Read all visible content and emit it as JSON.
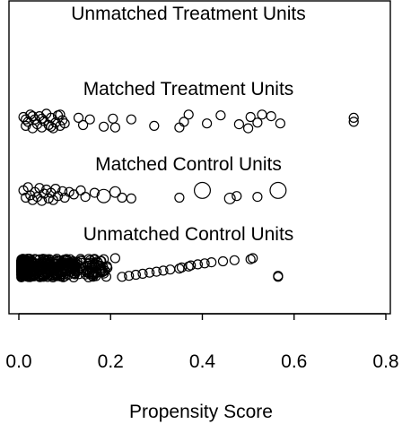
{
  "chart_data": {
    "type": "scatter",
    "title": "",
    "xlabel": "Propensity Score",
    "ylabel": "",
    "xlim": [
      -0.03,
      0.83
    ],
    "xticks": [
      "0.0",
      "0.2",
      "0.4",
      "0.6",
      "0.8"
    ],
    "xtick_values": [
      0.0,
      0.2,
      0.4,
      0.6,
      0.8
    ],
    "grid": false,
    "groups": [
      {
        "name": "Unmatched Treatment Units",
        "points": []
      },
      {
        "name": "Matched Treatment Units",
        "points": [
          {
            "x": 0.01,
            "j": -0.5,
            "w": 1
          },
          {
            "x": 0.015,
            "j": 0.6,
            "w": 1
          },
          {
            "x": 0.02,
            "j": 0.1,
            "w": 1
          },
          {
            "x": 0.025,
            "j": -0.8,
            "w": 1
          },
          {
            "x": 0.03,
            "j": 0.9,
            "w": 1
          },
          {
            "x": 0.035,
            "j": -0.2,
            "w": 1
          },
          {
            "x": 0.04,
            "j": 0.4,
            "w": 1
          },
          {
            "x": 0.045,
            "j": -0.6,
            "w": 1
          },
          {
            "x": 0.05,
            "j": 0.8,
            "w": 1
          },
          {
            "x": 0.055,
            "j": 0.0,
            "w": 1
          },
          {
            "x": 0.06,
            "j": -0.9,
            "w": 1
          },
          {
            "x": 0.065,
            "j": 0.5,
            "w": 1
          },
          {
            "x": 0.07,
            "j": -0.4,
            "w": 1
          },
          {
            "x": 0.075,
            "j": 0.9,
            "w": 1
          },
          {
            "x": 0.08,
            "j": 0.2,
            "w": 1
          },
          {
            "x": 0.085,
            "j": -0.7,
            "w": 1
          },
          {
            "x": 0.09,
            "j": 0.6,
            "w": 1
          },
          {
            "x": 0.095,
            "j": -0.1,
            "w": 1
          },
          {
            "x": 0.1,
            "j": 0.3,
            "w": 1
          },
          {
            "x": 0.03,
            "j": -0.6,
            "w": 1
          },
          {
            "x": 0.05,
            "j": -0.3,
            "w": 1
          },
          {
            "x": 0.07,
            "j": 0.7,
            "w": 1
          },
          {
            "x": 0.09,
            "j": -0.8,
            "w": 1
          },
          {
            "x": 0.015,
            "j": -0.2,
            "w": 1
          },
          {
            "x": 0.13,
            "j": -0.4,
            "w": 1
          },
          {
            "x": 0.14,
            "j": 0.5,
            "w": 1
          },
          {
            "x": 0.155,
            "j": -0.2,
            "w": 1
          },
          {
            "x": 0.185,
            "j": 0.7,
            "w": 1
          },
          {
            "x": 0.205,
            "j": -0.3,
            "w": 1
          },
          {
            "x": 0.21,
            "j": 0.8,
            "w": 1
          },
          {
            "x": 0.245,
            "j": -0.2,
            "w": 1
          },
          {
            "x": 0.295,
            "j": 0.6,
            "w": 1
          },
          {
            "x": 0.35,
            "j": 0.8,
            "w": 1
          },
          {
            "x": 0.36,
            "j": 0.1,
            "w": 1
          },
          {
            "x": 0.37,
            "j": -0.8,
            "w": 1
          },
          {
            "x": 0.41,
            "j": 0.3,
            "w": 1
          },
          {
            "x": 0.44,
            "j": -0.7,
            "w": 1
          },
          {
            "x": 0.48,
            "j": 0.4,
            "w": 1
          },
          {
            "x": 0.5,
            "j": 0.9,
            "w": 1
          },
          {
            "x": 0.505,
            "j": -0.5,
            "w": 1
          },
          {
            "x": 0.52,
            "j": 0.2,
            "w": 1
          },
          {
            "x": 0.53,
            "j": -0.8,
            "w": 1
          },
          {
            "x": 0.55,
            "j": -0.6,
            "w": 1
          },
          {
            "x": 0.57,
            "j": 0.3,
            "w": 1
          },
          {
            "x": 0.73,
            "j": 0.1,
            "w": 1
          },
          {
            "x": 0.73,
            "j": -0.4,
            "w": 1
          }
        ]
      },
      {
        "name": "Matched Control Units",
        "points": [
          {
            "x": 0.01,
            "j": -0.4,
            "w": 1
          },
          {
            "x": 0.015,
            "j": 0.5,
            "w": 1
          },
          {
            "x": 0.02,
            "j": -0.8,
            "w": 1
          },
          {
            "x": 0.025,
            "j": 0.2,
            "w": 1
          },
          {
            "x": 0.03,
            "j": 0.8,
            "w": 1
          },
          {
            "x": 0.035,
            "j": -0.2,
            "w": 1
          },
          {
            "x": 0.04,
            "j": 0.4,
            "w": 1
          },
          {
            "x": 0.045,
            "j": -0.7,
            "w": 1
          },
          {
            "x": 0.05,
            "j": 0.9,
            "w": 1
          },
          {
            "x": 0.055,
            "j": 0.0,
            "w": 1
          },
          {
            "x": 0.06,
            "j": -0.5,
            "w": 1
          },
          {
            "x": 0.065,
            "j": 0.6,
            "w": 1
          },
          {
            "x": 0.07,
            "j": -0.1,
            "w": 1
          },
          {
            "x": 0.075,
            "j": 0.8,
            "w": 1
          },
          {
            "x": 0.08,
            "j": -0.6,
            "w": 1
          },
          {
            "x": 0.085,
            "j": 0.3,
            "w": 1
          },
          {
            "x": 0.095,
            "j": -0.3,
            "w": 1
          },
          {
            "x": 0.1,
            "j": 0.5,
            "w": 1
          },
          {
            "x": 0.11,
            "j": -0.2,
            "w": 1
          },
          {
            "x": 0.12,
            "j": 0.1,
            "w": 1
          },
          {
            "x": 0.135,
            "j": -0.4,
            "w": 1
          },
          {
            "x": 0.145,
            "j": 0.4,
            "w": 1
          },
          {
            "x": 0.165,
            "j": -0.1,
            "w": 1
          },
          {
            "x": 0.185,
            "j": 0.3,
            "w": 2.2
          },
          {
            "x": 0.21,
            "j": -0.2,
            "w": 1.4
          },
          {
            "x": 0.225,
            "j": 0.5,
            "w": 1
          },
          {
            "x": 0.245,
            "j": 0.6,
            "w": 1
          },
          {
            "x": 0.35,
            "j": 0.5,
            "w": 1
          },
          {
            "x": 0.4,
            "j": -0.4,
            "w": 3.2
          },
          {
            "x": 0.46,
            "j": 0.6,
            "w": 1.4
          },
          {
            "x": 0.475,
            "j": 0.3,
            "w": 1
          },
          {
            "x": 0.52,
            "j": 0.4,
            "w": 1
          },
          {
            "x": 0.565,
            "j": -0.4,
            "w": 3.2
          }
        ]
      },
      {
        "name": "Unmatched Control Units",
        "points": []
      }
    ]
  }
}
